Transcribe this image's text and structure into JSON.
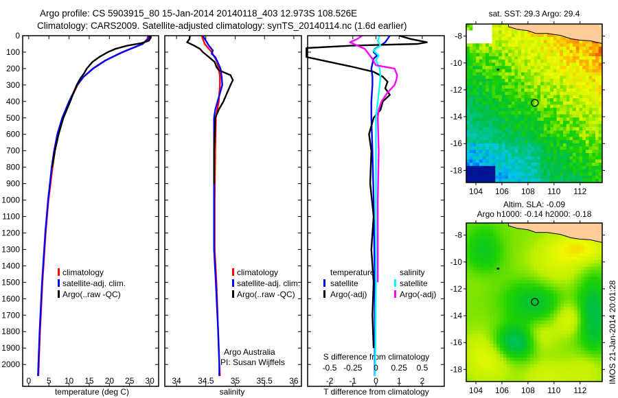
{
  "header": {
    "title_line1": "Argo profile: CS 5903915_80 15-Jan-2014 20140118_403 12.973S 108.526E",
    "title_line2": "Climatology: CARS2009. Satellite-adjusted climatology: synTS_20140114.nc (1.6d earlier)"
  },
  "colors": {
    "climatology": "#ff0000",
    "satellite": "#0000ff",
    "argo": "#000000",
    "sal_satellite": "#00ffff",
    "sal_argo": "#ff00ff",
    "land": "#ffcc99"
  },
  "chart_data": [
    {
      "type": "line",
      "name": "temperature-profile",
      "xlabel": "temperature (deg C)",
      "xlim": [
        -1.5,
        32.2
      ],
      "ylim": [
        0,
        2133
      ],
      "xticks": [
        "0",
        "5",
        "10",
        "15",
        "20",
        "25",
        "30"
      ],
      "xtick_values": [
        0,
        5,
        10,
        15,
        20,
        25,
        30
      ],
      "yticks": [
        "0",
        "100",
        "200",
        "300",
        "400",
        "500",
        "600",
        "700",
        "800",
        "900",
        "1000",
        "1100",
        "1200",
        "1300",
        "1400",
        "1500",
        "1600",
        "1700",
        "1800",
        "1900",
        "2000"
      ],
      "legend": [
        "climatology",
        "satellite-adj. clim.",
        "Argo(..raw -QC)"
      ],
      "series": [
        {
          "name": "climatology",
          "color": "#ff0000",
          "depth": [
            0,
            20,
            50,
            75,
            100,
            150,
            200,
            250,
            300,
            400,
            500,
            600,
            700,
            800,
            1000,
            1200,
            1500,
            1800,
            2000,
            2070
          ],
          "values": [
            29.6,
            29.4,
            28.3,
            25.8,
            23.3,
            19,
            15.9,
            13.6,
            12.1,
            10.1,
            8.4,
            7.3,
            6.5,
            5.9,
            4.9,
            4.2,
            3.4,
            2.8,
            2.5,
            2.4
          ]
        },
        {
          "name": "satellite-adj. clim.",
          "color": "#0000ff",
          "depth": [
            0,
            20,
            50,
            75,
            100,
            150,
            200,
            250,
            300,
            400,
            500,
            600,
            700,
            800,
            1000,
            1200,
            1500,
            1800,
            2000,
            2070
          ],
          "values": [
            29.9,
            29.6,
            28.2,
            25.7,
            23.2,
            19.1,
            16,
            13.6,
            12,
            10,
            8.3,
            7.1,
            6.3,
            5.7,
            4.8,
            4.1,
            3.3,
            2.7,
            2.4,
            2.3
          ]
        },
        {
          "name": "Argo(..raw -QC)",
          "color": "#000000",
          "depth": [
            0,
            10,
            30,
            45,
            60,
            80,
            100,
            130,
            160,
            200,
            230,
            260,
            300,
            400,
            500,
            600,
            700,
            800
          ],
          "values": [
            30.2,
            30.3,
            29.8,
            28,
            24.5,
            21.5,
            19.6,
            17.5,
            15.8,
            14.4,
            13.7,
            12.8,
            11.9,
            10.3,
            8.6,
            7.4,
            6.5,
            5.8
          ]
        }
      ]
    },
    {
      "type": "line",
      "name": "salinity-profile",
      "xlabel": "salinity",
      "xlim": [
        33.8,
        36.13
      ],
      "ylim": [
        0,
        2133
      ],
      "xticks": [
        "34",
        "34.5",
        "35",
        "35.5",
        "36"
      ],
      "xtick_values": [
        34,
        34.5,
        35,
        35.5,
        36
      ],
      "legend": [
        "climatology",
        "satellite-adj. clim.",
        "Argo(..raw -QC)"
      ],
      "annotation": [
        "Argo Australia",
        "PI: Susan Wijffels"
      ],
      "series": [
        {
          "name": "climatology",
          "color": "#ff0000",
          "depth": [
            0,
            50,
            100,
            150,
            200,
            250,
            300,
            400,
            500,
            700,
            1000,
            1300,
            1500,
            1800,
            2000,
            2070
          ],
          "values": [
            34.43,
            34.48,
            34.6,
            34.68,
            34.72,
            34.74,
            34.74,
            34.72,
            34.67,
            34.66,
            34.65,
            34.65,
            34.68,
            34.71,
            34.73,
            34.74
          ]
        },
        {
          "name": "satellite-adj. clim.",
          "color": "#0000ff",
          "depth": [
            0,
            30,
            60,
            90,
            110,
            130,
            160,
            200,
            250,
            300,
            350,
            400,
            450,
            500,
            700,
            1000,
            1300,
            1500,
            1800,
            2000,
            2070
          ],
          "values": [
            34.45,
            34.5,
            34.55,
            34.62,
            34.6,
            34.66,
            34.7,
            34.75,
            34.77,
            34.78,
            34.74,
            34.7,
            34.66,
            34.64,
            34.64,
            34.64,
            34.64,
            34.67,
            34.71,
            34.73,
            34.73
          ]
        },
        {
          "name": "Argo(..raw -QC)",
          "color": "#000000",
          "depth": [
            0,
            20,
            40,
            60,
            80,
            100,
            130,
            160,
            190,
            210,
            240,
            270,
            300,
            350,
            400,
            450,
            500,
            700,
            900
          ],
          "values": [
            34.23,
            34.22,
            34.18,
            34.3,
            34.4,
            34.45,
            34.55,
            34.65,
            34.68,
            34.72,
            34.92,
            34.96,
            34.92,
            34.86,
            34.8,
            34.72,
            34.66,
            34.64,
            34.64
          ]
        }
      ]
    },
    {
      "type": "line",
      "name": "difference-profile",
      "xlabel": "T difference from climatology",
      "xlabel2": "S difference from climatology",
      "xlim": [
        -2.95,
        2.95
      ],
      "xlim_S": [
        -0.74,
        0.74
      ],
      "ylim": [
        0,
        2133
      ],
      "xticks": [
        "-2",
        "-1",
        "0",
        "1",
        "2"
      ],
      "xtick_values": [
        -2,
        -1,
        0,
        1,
        2
      ],
      "xticks_S": [
        "-0.5",
        "-0.25",
        "0",
        "0.25",
        "0.5"
      ],
      "xtick_values_S": [
        -0.5,
        -0.25,
        0,
        0.25,
        0.5
      ],
      "legend_headers": [
        "temperature",
        "salinity"
      ],
      "legend": [
        "satellite",
        "Argo(-adj)",
        "satellite",
        "Argo(-adj)"
      ],
      "series": [
        {
          "name": "temperature satellite",
          "color": "#0000ff",
          "units": "T",
          "depth": [
            0,
            20,
            40,
            60,
            80,
            100,
            120,
            140,
            170,
            200,
            250,
            300,
            400,
            500,
            700,
            1000,
            1500,
            2000,
            2070
          ],
          "values": [
            0.6,
            0.5,
            0.4,
            0.2,
            -0.05,
            -0.1,
            0.05,
            -0.1,
            -0.15,
            -0.2,
            -0.15,
            -0.15,
            -0.2,
            -0.2,
            -0.15,
            -0.1,
            -0.05,
            -0.05,
            -0.05
          ]
        },
        {
          "name": "temperature Argo(-adj)",
          "color": "#000000",
          "units": "T",
          "depth": [
            0,
            20,
            40,
            50,
            60,
            75,
            90,
            130,
            160,
            190,
            220,
            250,
            280,
            320,
            360,
            400,
            450,
            500,
            600,
            700,
            900,
            1100,
            1300,
            1500,
            1700,
            1900
          ],
          "values": [
            1.0,
            1.5,
            2.2,
            1.8,
            -1.0,
            -3,
            -3,
            -3,
            -2.0,
            -1.0,
            -0.1,
            0.3,
            0.5,
            0.4,
            0.6,
            0.3,
            0.2,
            -0.1,
            -0.3,
            -0.2,
            -0.25,
            -0.1,
            -0.2,
            -0.1,
            -0.15,
            -0.1
          ]
        },
        {
          "name": "salinity satellite",
          "color": "#00ffff",
          "units": "S",
          "depth": [
            0,
            30,
            60,
            90,
            120,
            150,
            200,
            250,
            300,
            400,
            500,
            700,
            1000,
            1500,
            2070
          ],
          "values": [
            0.04,
            0.02,
            0.05,
            -0.03,
            0.03,
            0.0,
            0.04,
            0.05,
            0.04,
            0.02,
            0.0,
            0.0,
            0.0,
            0.0,
            -0.01
          ]
        },
        {
          "name": "salinity Argo(-adj)",
          "color": "#ff00ff",
          "units": "S",
          "depth": [
            0,
            20,
            40,
            60,
            80,
            110,
            140,
            180,
            200,
            240,
            270,
            300,
            350,
            400,
            450,
            500,
            700,
            1000,
            1500
          ],
          "values": [
            -0.15,
            -0.2,
            -0.28,
            -0.2,
            -0.12,
            -0.08,
            -0.04,
            0.0,
            0.2,
            0.23,
            0.22,
            0.2,
            0.12,
            0.06,
            0.03,
            0.02,
            0.03,
            0.02,
            0.02
          ]
        }
      ]
    },
    {
      "type": "heatmap",
      "name": "sst-map",
      "title": "sat. SST: 29.3 Argo: 29.4",
      "xlim": [
        103.26,
        113.7
      ],
      "ylim": [
        -18.9,
        -7.1
      ],
      "xticks": [
        "104",
        "106",
        "108",
        "110",
        "112"
      ],
      "xtick_values": [
        104,
        106,
        108,
        110,
        112
      ],
      "yticks": [
        "-8",
        "-10",
        "-12",
        "-14",
        "-16",
        "-18"
      ],
      "ytick_values": [
        -8,
        -10,
        -12,
        -14,
        -16,
        -18
      ],
      "argo_position": {
        "lon": 108.526,
        "lat": -12.973
      }
    },
    {
      "type": "heatmap",
      "name": "sla-map",
      "title_line1": "Altim. SLA: -0.09",
      "title_line2": "Argo h1000: -0.14 h2000: -0.18",
      "xlim": [
        103.26,
        113.7
      ],
      "ylim": [
        -18.9,
        -7.1
      ],
      "xticks": [
        "104",
        "106",
        "108",
        "110",
        "112"
      ],
      "xtick_values": [
        104,
        106,
        108,
        110,
        112
      ],
      "yticks": [
        "-8",
        "-10",
        "-12",
        "-14",
        "-16",
        "-18"
      ],
      "ytick_values": [
        -8,
        -10,
        -12,
        -14,
        -16,
        -18
      ],
      "argo_position": {
        "lon": 108.526,
        "lat": -12.973
      }
    }
  ],
  "footer": {
    "side_stamp": "IMOS 21-Jan-2014 20:01:28"
  }
}
